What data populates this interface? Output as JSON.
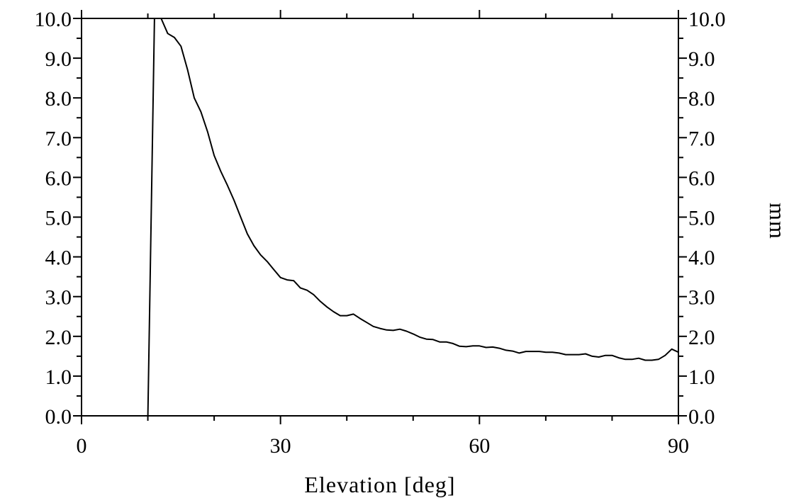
{
  "chart_data": {
    "type": "line",
    "title": "",
    "xlabel": "Elevation [deg]",
    "ylabel_right": "mm",
    "xlim": [
      0,
      90
    ],
    "ylim": [
      0,
      10
    ],
    "x_ticks": [
      0,
      30,
      60,
      90
    ],
    "x_tick_labels": [
      "0",
      "30",
      "60",
      "90"
    ],
    "x_minor_step": 10,
    "y_ticks": [
      0,
      1,
      2,
      3,
      4,
      5,
      6,
      7,
      8,
      9,
      10
    ],
    "y_tick_labels": [
      "0.0",
      "1.0",
      "2.0",
      "3.0",
      "4.0",
      "5.0",
      "6.0",
      "7.0",
      "8.0",
      "9.0",
      "10.0"
    ],
    "y_minor_step": 0.5,
    "grid": false,
    "series": [
      {
        "x": [
          10,
          11,
          12,
          13,
          14,
          15,
          16,
          17,
          18,
          19,
          20,
          21,
          22,
          23,
          24,
          25,
          26,
          27,
          28,
          29,
          30,
          31,
          32,
          33,
          34,
          35,
          36,
          37,
          38,
          39,
          40,
          41,
          42,
          43,
          44,
          45,
          46,
          47,
          48,
          49,
          50,
          51,
          52,
          53,
          54,
          55,
          56,
          57,
          58,
          59,
          60,
          61,
          62,
          63,
          64,
          65,
          66,
          67,
          68,
          69,
          70,
          71,
          72,
          73,
          74,
          75,
          76,
          77,
          78,
          79,
          80,
          81,
          82,
          83,
          84,
          85,
          86,
          87,
          88,
          89,
          90
        ],
        "y": [
          0.0,
          10.0,
          10.0,
          9.62,
          9.52,
          9.3,
          8.7,
          8.0,
          7.65,
          7.15,
          6.55,
          6.15,
          5.8,
          5.42,
          5.0,
          4.58,
          4.28,
          4.05,
          3.88,
          3.68,
          3.48,
          3.42,
          3.4,
          3.22,
          3.16,
          3.05,
          2.88,
          2.74,
          2.62,
          2.52,
          2.52,
          2.56,
          2.45,
          2.35,
          2.25,
          2.2,
          2.16,
          2.15,
          2.18,
          2.13,
          2.06,
          1.98,
          1.93,
          1.92,
          1.86,
          1.86,
          1.82,
          1.75,
          1.74,
          1.76,
          1.76,
          1.72,
          1.73,
          1.7,
          1.65,
          1.63,
          1.58,
          1.62,
          1.62,
          1.62,
          1.6,
          1.6,
          1.58,
          1.54,
          1.54,
          1.54,
          1.56,
          1.5,
          1.48,
          1.52,
          1.52,
          1.46,
          1.42,
          1.42,
          1.45,
          1.4,
          1.4,
          1.42,
          1.52,
          1.68,
          1.6
        ]
      }
    ]
  }
}
